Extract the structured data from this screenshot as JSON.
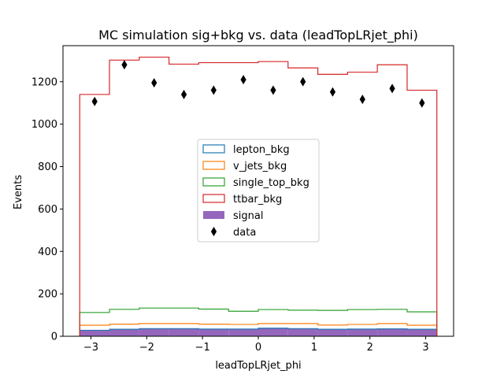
{
  "chart_data": {
    "type": "histogram-step",
    "title": "MC simulation sig+bkg vs. data (leadTopLRjet_phi)",
    "xlabel": "leadTopLRjet_phi",
    "ylabel": "Events",
    "xlim": [
      -3.5,
      3.5
    ],
    "ylim": [
      0,
      1370
    ],
    "xticks": [
      -3,
      -2,
      -1,
      0,
      1,
      2,
      3
    ],
    "xtick_labels": [
      "−3",
      "−2",
      "−1",
      "0",
      "1",
      "2",
      "3"
    ],
    "yticks": [
      0,
      200,
      400,
      600,
      800,
      1000,
      1200
    ],
    "ytick_labels": [
      "0",
      "200",
      "400",
      "600",
      "800",
      "1000",
      "1200"
    ],
    "bin_edges": [
      -3.2,
      -2.667,
      -2.133,
      -1.6,
      -1.067,
      -0.533,
      0.0,
      0.533,
      1.067,
      1.6,
      2.133,
      2.667,
      3.2
    ],
    "legend_position": "center",
    "series": [
      {
        "name": "lepton_bkg",
        "color": "#1f77b4",
        "kind": "step",
        "values": [
          28,
          33,
          36,
          36,
          34,
          34,
          38,
          36,
          33,
          34,
          35,
          33
        ]
      },
      {
        "name": "v_jets_bkg",
        "color": "#ff7f0e",
        "kind": "step",
        "values": [
          52,
          57,
          60,
          60,
          57,
          56,
          60,
          60,
          53,
          56,
          60,
          52
        ]
      },
      {
        "name": "single_top_bkg",
        "color": "#2ca02c",
        "kind": "step",
        "values": [
          112,
          127,
          133,
          133,
          128,
          118,
          126,
          123,
          122,
          126,
          127,
          115
        ]
      },
      {
        "name": "ttbar_bkg",
        "color": "#d62728",
        "kind": "step",
        "values": [
          1140,
          1302,
          1316,
          1283,
          1290,
          1290,
          1295,
          1265,
          1235,
          1245,
          1280,
          1160
        ]
      },
      {
        "name": "signal",
        "color": "#9467bd",
        "kind": "filled",
        "values": [
          28,
          33,
          36,
          36,
          34,
          34,
          38,
          36,
          33,
          34,
          35,
          33
        ]
      }
    ],
    "data": {
      "name": "data",
      "color": "#000000",
      "marker": "thin_diamond",
      "x": [
        -2.933,
        -2.4,
        -1.867,
        -1.333,
        -0.8,
        -0.267,
        0.267,
        0.8,
        1.333,
        1.867,
        2.4,
        2.933
      ],
      "y": [
        1107,
        1280,
        1195,
        1140,
        1160,
        1210,
        1160,
        1200,
        1152,
        1117,
        1168,
        1100
      ]
    }
  }
}
